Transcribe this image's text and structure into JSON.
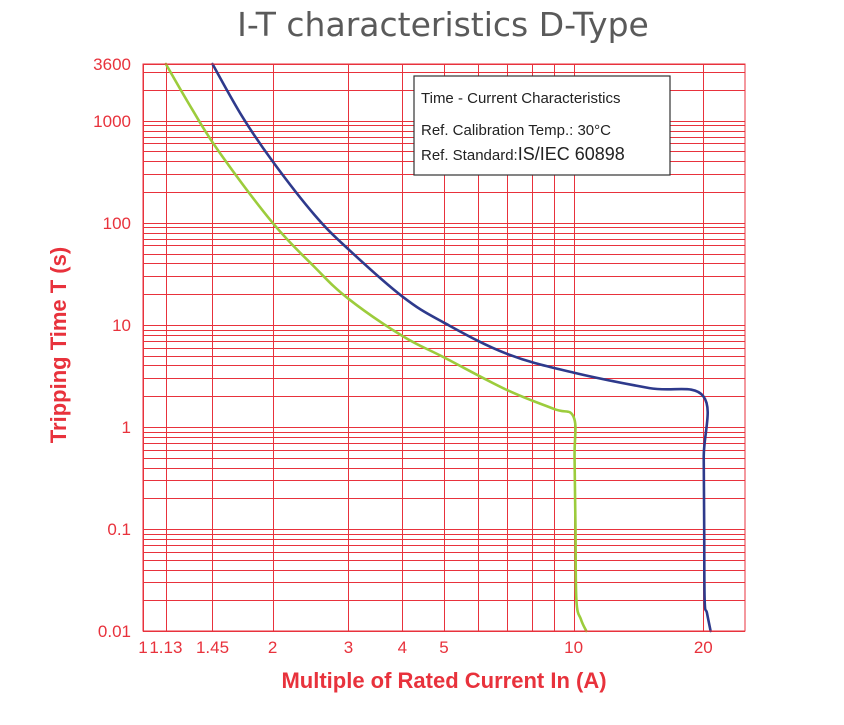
{
  "chart_data": {
    "type": "line",
    "title": "I-T characteristics D-Type",
    "xlabel": "Multiple of Rated Current In (A)",
    "ylabel": "Tripping Time T (s)",
    "xscale": "log",
    "yscale": "log",
    "xlim": [
      1,
      25
    ],
    "ylim": [
      0.01,
      3600
    ],
    "x_ticks": [
      1,
      1.13,
      1.45,
      2,
      3,
      4,
      5,
      10,
      20
    ],
    "x_tick_labels": [
      "1",
      "1.13",
      "1.45",
      "2",
      "3",
      "4",
      "5",
      "10",
      "20"
    ],
    "y_ticks": [
      0.01,
      0.1,
      1,
      10,
      100,
      1000,
      3600
    ],
    "y_tick_labels": [
      "0.01",
      "0.1",
      "1",
      "10",
      "100",
      "1000",
      "3600"
    ],
    "grid": true,
    "series": [
      {
        "color": "#9ccc3c",
        "points": [
          [
            1.13,
            3600
          ],
          [
            1.3,
            1300
          ],
          [
            1.5,
            500
          ],
          [
            2,
            100
          ],
          [
            2.5,
            37
          ],
          [
            3,
            18
          ],
          [
            4,
            7.8
          ],
          [
            5,
            4.8
          ],
          [
            7,
            2.3
          ],
          [
            9,
            1.5
          ],
          [
            10,
            1.25
          ],
          [
            10.05,
            0.5
          ],
          [
            10.1,
            0.1
          ],
          [
            10.15,
            0.02
          ],
          [
            10.4,
            0.013
          ],
          [
            10.7,
            0.01
          ]
        ]
      },
      {
        "color": "#2e3a8c",
        "points": [
          [
            1.45,
            3600
          ],
          [
            1.7,
            1100
          ],
          [
            2,
            400
          ],
          [
            2.5,
            120
          ],
          [
            3,
            55
          ],
          [
            4,
            19
          ],
          [
            5,
            10.5
          ],
          [
            7,
            5.2
          ],
          [
            10,
            3.4
          ],
          [
            15,
            2.4
          ],
          [
            20,
            2.0
          ],
          [
            20.05,
            0.5
          ],
          [
            20.1,
            0.1
          ],
          [
            20.15,
            0.02
          ],
          [
            20.4,
            0.015
          ],
          [
            20.8,
            0.01
          ]
        ]
      }
    ],
    "legend_box": {
      "line1": "Time - Current Characteristics",
      "line2": "Ref. Calibration Temp.: 30°C",
      "line3_prefix": "Ref. Standard:",
      "line3_value": "IS/IEC 60898"
    }
  }
}
